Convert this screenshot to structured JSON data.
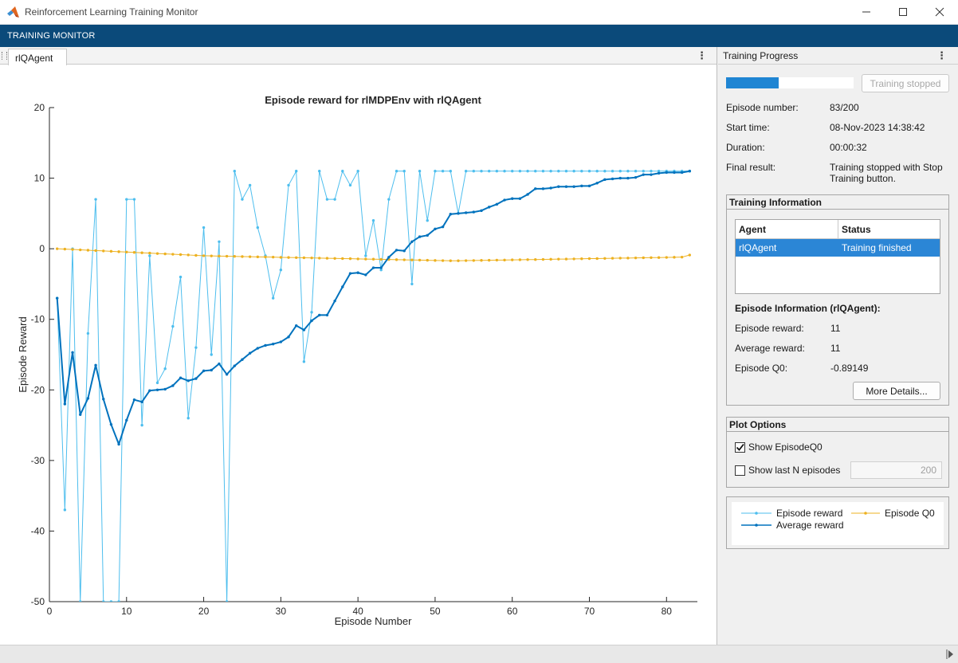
{
  "window": {
    "title": "Reinforcement Learning Training Monitor",
    "toolstrip_tab": "TRAINING MONITOR"
  },
  "document": {
    "tab_label": "rlQAgent"
  },
  "chart_data": {
    "type": "line",
    "title": "Episode reward for rlMDPEnv with rlQAgent",
    "xlabel": "Episode Number",
    "ylabel": "Episode Reward",
    "xlim": [
      0,
      84
    ],
    "ylim": [
      -50,
      20
    ],
    "xticks": [
      0,
      10,
      20,
      30,
      40,
      50,
      60,
      70,
      80
    ],
    "yticks": [
      -50,
      -40,
      -30,
      -20,
      -10,
      0,
      10,
      20
    ],
    "grid": false,
    "x": [
      1,
      2,
      3,
      4,
      5,
      6,
      7,
      8,
      9,
      10,
      11,
      12,
      13,
      14,
      15,
      16,
      17,
      18,
      19,
      20,
      21,
      22,
      23,
      24,
      25,
      26,
      27,
      28,
      29,
      30,
      31,
      32,
      33,
      34,
      35,
      36,
      37,
      38,
      39,
      40,
      41,
      42,
      43,
      44,
      45,
      46,
      47,
      48,
      49,
      50,
      51,
      52,
      53,
      54,
      55,
      56,
      57,
      58,
      59,
      60,
      61,
      62,
      63,
      64,
      65,
      66,
      67,
      68,
      69,
      70,
      71,
      72,
      73,
      74,
      75,
      76,
      77,
      78,
      79,
      80,
      81,
      82,
      83
    ],
    "series": [
      {
        "name": "Episode reward",
        "color": "#4dbeee",
        "values": [
          -7,
          -37,
          0,
          -50,
          -12,
          7,
          -50,
          -50,
          -50,
          7,
          7,
          -25,
          -1,
          -19,
          -17,
          -11,
          -4,
          -24,
          -14,
          3,
          -15,
          1,
          -50,
          11,
          7,
          9,
          3,
          -1,
          -7,
          -3,
          9,
          11,
          -16,
          -9,
          11,
          7,
          7,
          11,
          9,
          11,
          -1,
          4,
          -3,
          7,
          11,
          11,
          -5,
          11,
          4,
          11,
          11,
          11,
          5,
          11,
          11,
          11,
          11,
          11,
          11,
          11,
          11,
          11,
          11,
          11,
          11,
          11,
          11,
          11,
          11,
          11,
          11,
          11,
          11,
          11,
          11,
          11,
          11,
          11,
          11,
          11,
          11,
          11,
          11
        ]
      },
      {
        "name": "Average reward",
        "color": "#0072bd",
        "values": [
          -7,
          -22,
          -14.7,
          -23.5,
          -21.2,
          -16.5,
          -21.3,
          -24.9,
          -27.7,
          -24.3,
          -21.4,
          -21.7,
          -20.1,
          -20,
          -19.9,
          -19.4,
          -18.3,
          -18.7,
          -18.4,
          -17.3,
          -17.2,
          -16.3,
          -17.8,
          -16.6,
          -15.7,
          -14.8,
          -14.1,
          -13.7,
          -13.5,
          -13.2,
          -12.5,
          -10.9,
          -11.5,
          -10.2,
          -9.4,
          -9.4,
          -7.4,
          -5.4,
          -3.5,
          -3.4,
          -3.7,
          -2.7,
          -2.7,
          -1.2,
          -0.2,
          -0.3,
          1,
          1.7,
          1.9,
          2.8,
          3.1,
          4.9,
          5,
          5.1,
          5.2,
          5.4,
          5.9,
          6.3,
          6.9,
          7.1,
          7.1,
          7.7,
          8.5,
          8.5,
          8.6,
          8.8,
          8.8,
          8.8,
          8.9,
          8.9,
          9.3,
          9.8,
          9.9,
          10,
          10,
          10.1,
          10.5,
          10.5,
          10.7,
          10.8,
          10.8,
          10.8,
          11
        ]
      },
      {
        "name": "Episode Q0",
        "color": "#edb120",
        "values": [
          0,
          -0.05,
          -0.1,
          -0.16,
          -0.21,
          -0.26,
          -0.31,
          -0.36,
          -0.42,
          -0.47,
          -0.52,
          -0.57,
          -0.62,
          -0.68,
          -0.73,
          -0.78,
          -0.83,
          -0.88,
          -0.94,
          -0.99,
          -1.02,
          -1.04,
          -1.06,
          -1.08,
          -1.11,
          -1.13,
          -1.15,
          -1.17,
          -1.19,
          -1.22,
          -1.24,
          -1.26,
          -1.28,
          -1.3,
          -1.33,
          -1.35,
          -1.37,
          -1.39,
          -1.41,
          -1.44,
          -1.46,
          -1.48,
          -1.5,
          -1.52,
          -1.55,
          -1.57,
          -1.59,
          -1.61,
          -1.63,
          -1.66,
          -1.68,
          -1.7,
          -1.7,
          -1.68,
          -1.67,
          -1.65,
          -1.63,
          -1.61,
          -1.6,
          -1.58,
          -1.56,
          -1.54,
          -1.53,
          -1.51,
          -1.49,
          -1.47,
          -1.46,
          -1.44,
          -1.42,
          -1.4,
          -1.39,
          -1.37,
          -1.35,
          -1.33,
          -1.32,
          -1.3,
          -1.28,
          -1.26,
          -1.25,
          -1.23,
          -1.21,
          -1.19,
          -0.89
        ]
      }
    ],
    "legend_position": "bottom-right-panel"
  },
  "training_progress": {
    "header": "Training Progress",
    "progress_percent": 41.5,
    "stop_button_label": "Training stopped",
    "fields": [
      {
        "label": "Episode number:",
        "value": "83/200"
      },
      {
        "label": "Start time:",
        "value": "08-Nov-2023 14:38:42"
      },
      {
        "label": "Duration:",
        "value": "00:00:32"
      },
      {
        "label": "Final result:",
        "value_line1": "Training stopped with Stop",
        "value_line2": "Training button."
      }
    ]
  },
  "training_information": {
    "title": "Training Information",
    "table": {
      "headers": [
        "Agent",
        "Status"
      ],
      "rows": [
        [
          "rlQAgent",
          "Training finished"
        ]
      ]
    },
    "episode_info_title": "Episode Information (rlQAgent):",
    "episode_info": [
      {
        "label": "Episode reward:",
        "value": "11"
      },
      {
        "label": "Average reward:",
        "value": "11"
      },
      {
        "label": "Episode Q0:",
        "value": "-0.89149"
      }
    ],
    "more_details_label": "More Details..."
  },
  "plot_options": {
    "title": "Plot Options",
    "show_q0_label": "Show EpisodeQ0",
    "show_q0_checked": true,
    "show_last_n_label": "Show last N episodes",
    "show_last_n_checked": false,
    "last_n_value": "200"
  },
  "legend": {
    "items": [
      "Episode reward",
      "Episode Q0",
      "Average reward"
    ]
  }
}
